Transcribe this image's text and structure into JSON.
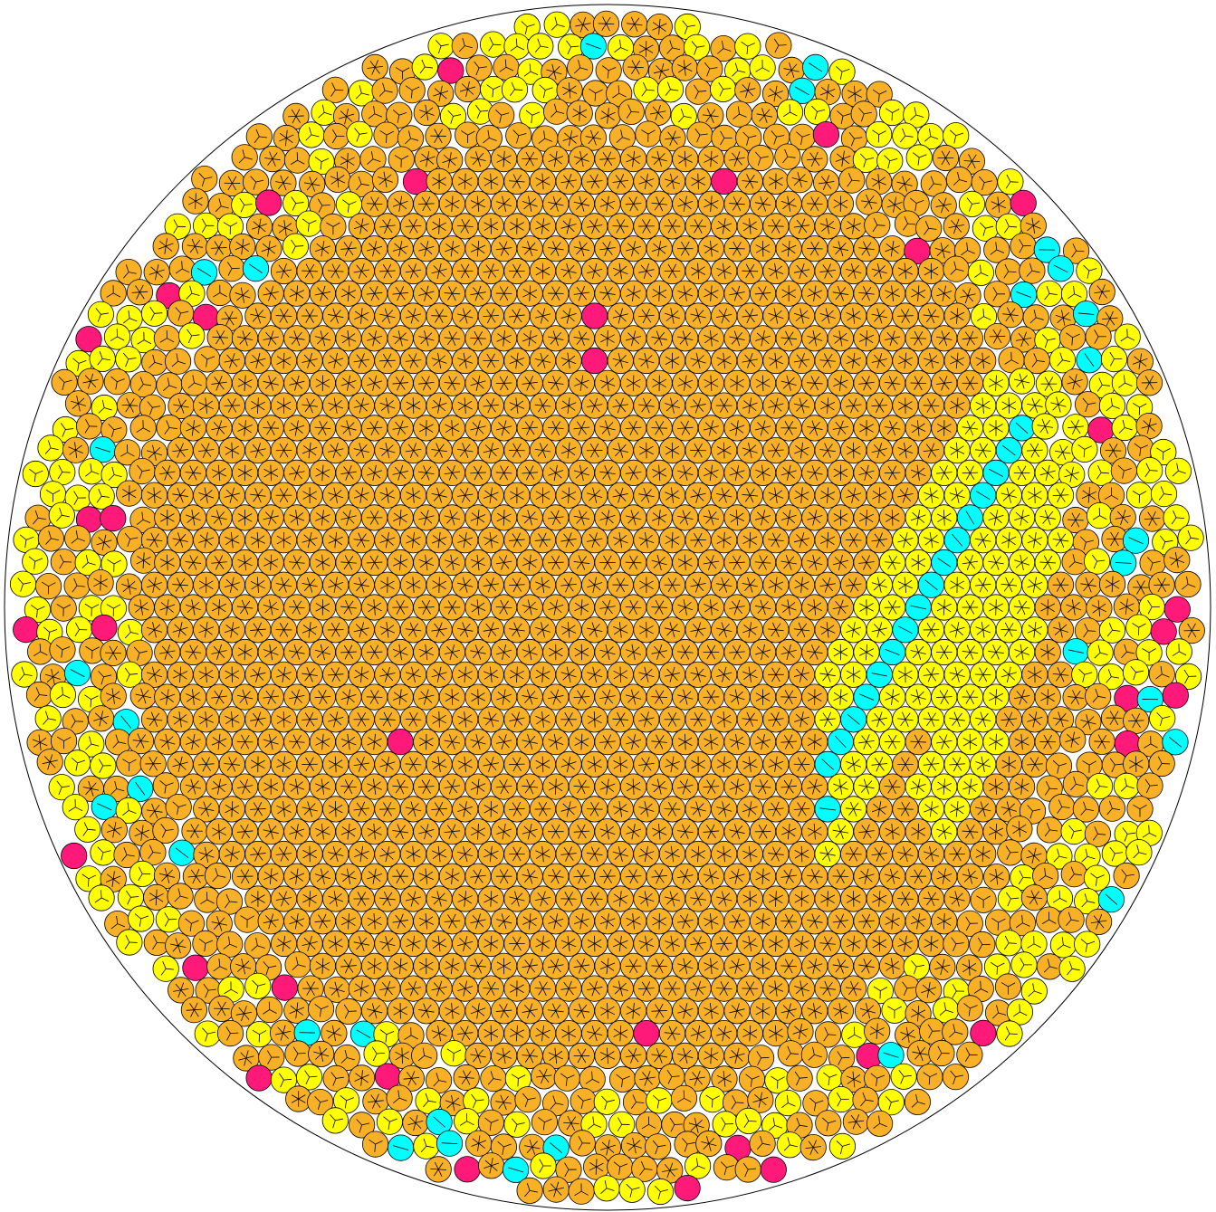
{
  "diagram": {
    "legend_colors": {
      "six_neighbour": "#F8B027",
      "five_neighbour": "#FFFF00",
      "four_neighbour": "#00FFFF",
      "defect": "#FF1A7A",
      "stroke": "#000000",
      "boundary": "#000000",
      "background": "#FFFFFF"
    },
    "marker_icons": [
      "bond-star-icon",
      "bond-y-icon",
      "bond-bar-icon"
    ],
    "packing": {
      "lattice": "triangular",
      "rows_estimate": 48,
      "disks_per_row_max": 48
    },
    "regions": [
      {
        "name": "crystal-core",
        "color_key": "six_neighbour"
      },
      {
        "name": "grain-boundary-band",
        "color_key": "four_neighbour"
      },
      {
        "name": "disordered-edge",
        "color_key": "five_neighbour"
      },
      {
        "name": "point-defects",
        "color_key": "defect"
      }
    ]
  }
}
